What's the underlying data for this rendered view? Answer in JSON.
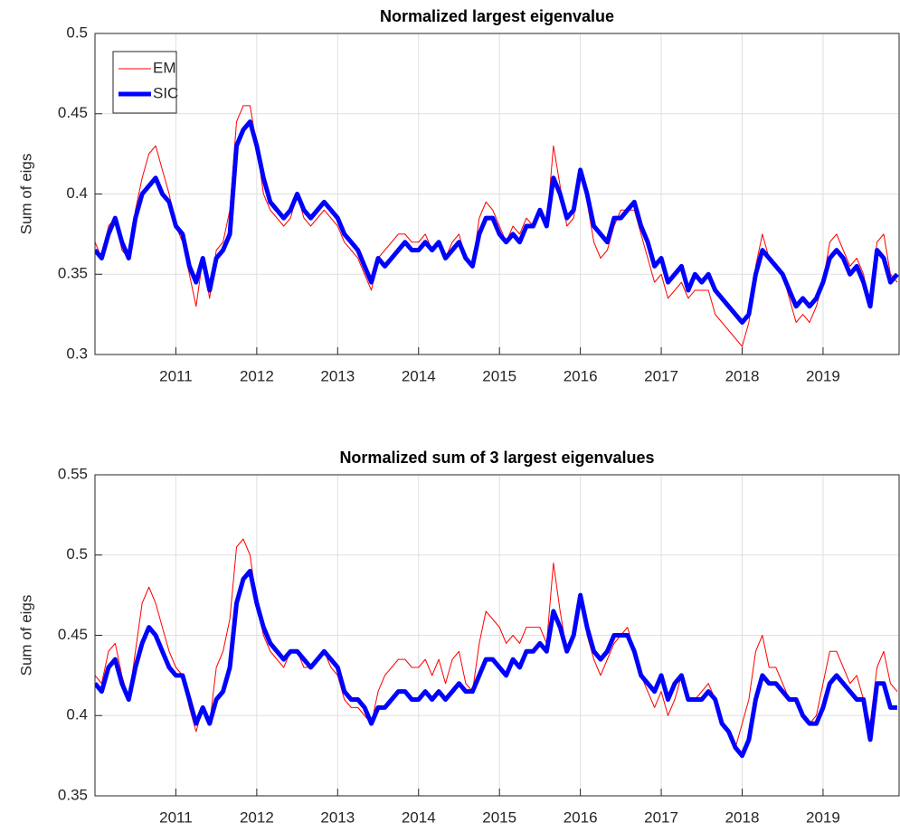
{
  "chart_data": [
    {
      "type": "line",
      "title": "Normalized largest eigenvalue",
      "y_label": "Sum of eigs",
      "x": [
        2010,
        2010.083,
        2010.167,
        2010.25,
        2010.333,
        2010.417,
        2010.5,
        2010.583,
        2010.667,
        2010.75,
        2010.833,
        2010.917,
        2011,
        2011.083,
        2011.167,
        2011.25,
        2011.333,
        2011.417,
        2011.5,
        2011.583,
        2011.667,
        2011.75,
        2011.833,
        2011.917,
        2012,
        2012.083,
        2012.167,
        2012.25,
        2012.333,
        2012.417,
        2012.5,
        2012.583,
        2012.667,
        2012.75,
        2012.833,
        2012.917,
        2013,
        2013.083,
        2013.167,
        2013.25,
        2013.333,
        2013.417,
        2013.5,
        2013.583,
        2013.667,
        2013.75,
        2013.833,
        2013.917,
        2014,
        2014.083,
        2014.167,
        2014.25,
        2014.333,
        2014.417,
        2014.5,
        2014.583,
        2014.667,
        2014.75,
        2014.833,
        2014.917,
        2015,
        2015.083,
        2015.167,
        2015.25,
        2015.333,
        2015.417,
        2015.5,
        2015.583,
        2015.667,
        2015.75,
        2015.833,
        2015.917,
        2016,
        2016.083,
        2016.167,
        2016.25,
        2016.333,
        2016.417,
        2016.5,
        2016.583,
        2016.667,
        2016.75,
        2016.833,
        2016.917,
        2017,
        2017.083,
        2017.167,
        2017.25,
        2017.333,
        2017.417,
        2017.5,
        2017.583,
        2017.667,
        2017.75,
        2017.833,
        2017.917,
        2018,
        2018.083,
        2018.167,
        2018.25,
        2018.333,
        2018.417,
        2018.5,
        2018.583,
        2018.667,
        2018.75,
        2018.833,
        2018.917,
        2019,
        2019.083,
        2019.167,
        2019.25,
        2019.333,
        2019.417,
        2019.5,
        2019.583,
        2019.667,
        2019.75,
        2019.833,
        2019.917
      ],
      "series": [
        {
          "name": "EM",
          "color": "#ff0000",
          "width": 1,
          "values": [
            0.37,
            0.36,
            0.38,
            0.385,
            0.365,
            0.36,
            0.39,
            0.41,
            0.425,
            0.43,
            0.415,
            0.4,
            0.38,
            0.37,
            0.35,
            0.33,
            0.36,
            0.335,
            0.365,
            0.37,
            0.39,
            0.445,
            0.455,
            0.455,
            0.43,
            0.4,
            0.39,
            0.385,
            0.38,
            0.385,
            0.4,
            0.385,
            0.38,
            0.385,
            0.39,
            0.385,
            0.38,
            0.37,
            0.365,
            0.36,
            0.35,
            0.34,
            0.36,
            0.365,
            0.37,
            0.375,
            0.375,
            0.37,
            0.37,
            0.375,
            0.365,
            0.37,
            0.36,
            0.37,
            0.375,
            0.36,
            0.355,
            0.385,
            0.395,
            0.39,
            0.38,
            0.37,
            0.38,
            0.375,
            0.385,
            0.38,
            0.39,
            0.38,
            0.43,
            0.405,
            0.38,
            0.385,
            0.415,
            0.395,
            0.37,
            0.36,
            0.365,
            0.38,
            0.39,
            0.39,
            0.39,
            0.375,
            0.36,
            0.345,
            0.35,
            0.335,
            0.34,
            0.345,
            0.335,
            0.34,
            0.34,
            0.34,
            0.325,
            0.32,
            0.315,
            0.31,
            0.305,
            0.32,
            0.355,
            0.375,
            0.36,
            0.355,
            0.35,
            0.335,
            0.32,
            0.325,
            0.32,
            0.33,
            0.345,
            0.37,
            0.375,
            0.365,
            0.355,
            0.36,
            0.35,
            0.33,
            0.37,
            0.375,
            0.35,
            0.345
          ]
        },
        {
          "name": "SIC",
          "color": "#0000ff",
          "width": 5,
          "values": [
            0.365,
            0.36,
            0.375,
            0.385,
            0.37,
            0.36,
            0.385,
            0.4,
            0.405,
            0.41,
            0.4,
            0.395,
            0.38,
            0.375,
            0.355,
            0.345,
            0.36,
            0.34,
            0.36,
            0.365,
            0.375,
            0.43,
            0.44,
            0.445,
            0.43,
            0.41,
            0.395,
            0.39,
            0.385,
            0.39,
            0.4,
            0.39,
            0.385,
            0.39,
            0.395,
            0.39,
            0.385,
            0.375,
            0.37,
            0.365,
            0.355,
            0.345,
            0.36,
            0.355,
            0.36,
            0.365,
            0.37,
            0.365,
            0.365,
            0.37,
            0.365,
            0.37,
            0.36,
            0.365,
            0.37,
            0.36,
            0.355,
            0.375,
            0.385,
            0.385,
            0.375,
            0.37,
            0.375,
            0.37,
            0.38,
            0.38,
            0.39,
            0.38,
            0.41,
            0.4,
            0.385,
            0.39,
            0.415,
            0.4,
            0.38,
            0.375,
            0.37,
            0.385,
            0.385,
            0.39,
            0.395,
            0.38,
            0.37,
            0.355,
            0.36,
            0.345,
            0.35,
            0.355,
            0.34,
            0.35,
            0.345,
            0.35,
            0.34,
            0.335,
            0.33,
            0.325,
            0.32,
            0.325,
            0.35,
            0.365,
            0.36,
            0.355,
            0.35,
            0.34,
            0.33,
            0.335,
            0.33,
            0.335,
            0.345,
            0.36,
            0.365,
            0.36,
            0.35,
            0.355,
            0.345,
            0.33,
            0.365,
            0.36,
            0.345,
            0.35
          ]
        }
      ],
      "xlim": [
        2010,
        2019.94
      ],
      "xticks": [
        2011,
        2012,
        2013,
        2014,
        2015,
        2016,
        2017,
        2018,
        2019
      ],
      "ylim": [
        0.3,
        0.5
      ],
      "yticks": [
        0.3,
        0.35,
        0.4,
        0.45,
        0.5
      ],
      "grid": true,
      "legend": "upper left"
    },
    {
      "type": "line",
      "title": "Normalized sum of 3 largest eigenvalues",
      "y_label": "Sum of eigs",
      "x": [
        2010,
        2010.083,
        2010.167,
        2010.25,
        2010.333,
        2010.417,
        2010.5,
        2010.583,
        2010.667,
        2010.75,
        2010.833,
        2010.917,
        2011,
        2011.083,
        2011.167,
        2011.25,
        2011.333,
        2011.417,
        2011.5,
        2011.583,
        2011.667,
        2011.75,
        2011.833,
        2011.917,
        2012,
        2012.083,
        2012.167,
        2012.25,
        2012.333,
        2012.417,
        2012.5,
        2012.583,
        2012.667,
        2012.75,
        2012.833,
        2012.917,
        2013,
        2013.083,
        2013.167,
        2013.25,
        2013.333,
        2013.417,
        2013.5,
        2013.583,
        2013.667,
        2013.75,
        2013.833,
        2013.917,
        2014,
        2014.083,
        2014.167,
        2014.25,
        2014.333,
        2014.417,
        2014.5,
        2014.583,
        2014.667,
        2014.75,
        2014.833,
        2014.917,
        2015,
        2015.083,
        2015.167,
        2015.25,
        2015.333,
        2015.417,
        2015.5,
        2015.583,
        2015.667,
        2015.75,
        2015.833,
        2015.917,
        2016,
        2016.083,
        2016.167,
        2016.25,
        2016.333,
        2016.417,
        2016.5,
        2016.583,
        2016.667,
        2016.75,
        2016.833,
        2016.917,
        2017,
        2017.083,
        2017.167,
        2017.25,
        2017.333,
        2017.417,
        2017.5,
        2017.583,
        2017.667,
        2017.75,
        2017.833,
        2017.917,
        2018,
        2018.083,
        2018.167,
        2018.25,
        2018.333,
        2018.417,
        2018.5,
        2018.583,
        2018.667,
        2018.75,
        2018.833,
        2018.917,
        2019,
        2019.083,
        2019.167,
        2019.25,
        2019.333,
        2019.417,
        2019.5,
        2019.583,
        2019.667,
        2019.75,
        2019.833,
        2019.917
      ],
      "series": [
        {
          "name": "EM",
          "color": "#ff0000",
          "width": 1,
          "values": [
            0.425,
            0.42,
            0.44,
            0.445,
            0.425,
            0.41,
            0.44,
            0.47,
            0.48,
            0.47,
            0.455,
            0.44,
            0.43,
            0.425,
            0.405,
            0.39,
            0.405,
            0.395,
            0.43,
            0.44,
            0.46,
            0.505,
            0.51,
            0.5,
            0.47,
            0.45,
            0.44,
            0.435,
            0.43,
            0.44,
            0.44,
            0.43,
            0.43,
            0.435,
            0.44,
            0.43,
            0.425,
            0.41,
            0.405,
            0.405,
            0.4,
            0.395,
            0.415,
            0.425,
            0.43,
            0.435,
            0.435,
            0.43,
            0.43,
            0.435,
            0.425,
            0.435,
            0.42,
            0.435,
            0.44,
            0.42,
            0.415,
            0.445,
            0.465,
            0.46,
            0.455,
            0.445,
            0.45,
            0.445,
            0.455,
            0.455,
            0.455,
            0.445,
            0.495,
            0.465,
            0.44,
            0.45,
            0.475,
            0.45,
            0.435,
            0.425,
            0.435,
            0.445,
            0.45,
            0.455,
            0.44,
            0.425,
            0.415,
            0.405,
            0.415,
            0.4,
            0.41,
            0.425,
            0.41,
            0.41,
            0.415,
            0.42,
            0.41,
            0.395,
            0.39,
            0.38,
            0.395,
            0.41,
            0.44,
            0.45,
            0.43,
            0.43,
            0.42,
            0.41,
            0.41,
            0.4,
            0.395,
            0.4,
            0.42,
            0.44,
            0.44,
            0.43,
            0.42,
            0.425,
            0.41,
            0.395,
            0.43,
            0.44,
            0.42,
            0.415
          ]
        },
        {
          "name": "SIC",
          "color": "#0000ff",
          "width": 5,
          "values": [
            0.42,
            0.415,
            0.43,
            0.435,
            0.42,
            0.41,
            0.43,
            0.445,
            0.455,
            0.45,
            0.44,
            0.43,
            0.425,
            0.425,
            0.41,
            0.395,
            0.405,
            0.395,
            0.41,
            0.415,
            0.43,
            0.47,
            0.485,
            0.49,
            0.47,
            0.455,
            0.445,
            0.44,
            0.435,
            0.44,
            0.44,
            0.435,
            0.43,
            0.435,
            0.44,
            0.435,
            0.43,
            0.415,
            0.41,
            0.41,
            0.405,
            0.395,
            0.405,
            0.405,
            0.41,
            0.415,
            0.415,
            0.41,
            0.41,
            0.415,
            0.41,
            0.415,
            0.41,
            0.415,
            0.42,
            0.415,
            0.415,
            0.425,
            0.435,
            0.435,
            0.43,
            0.425,
            0.435,
            0.43,
            0.44,
            0.44,
            0.445,
            0.44,
            0.465,
            0.455,
            0.44,
            0.45,
            0.475,
            0.455,
            0.44,
            0.435,
            0.44,
            0.45,
            0.45,
            0.45,
            0.44,
            0.425,
            0.42,
            0.415,
            0.425,
            0.41,
            0.42,
            0.425,
            0.41,
            0.41,
            0.41,
            0.415,
            0.41,
            0.395,
            0.39,
            0.38,
            0.375,
            0.385,
            0.41,
            0.425,
            0.42,
            0.42,
            0.415,
            0.41,
            0.41,
            0.4,
            0.395,
            0.395,
            0.405,
            0.42,
            0.425,
            0.42,
            0.415,
            0.41,
            0.41,
            0.385,
            0.42,
            0.42,
            0.405,
            0.405
          ]
        }
      ],
      "xlim": [
        2010,
        2019.94
      ],
      "xticks": [
        2011,
        2012,
        2013,
        2014,
        2015,
        2016,
        2017,
        2018,
        2019
      ],
      "ylim": [
        0.35,
        0.55
      ],
      "yticks": [
        0.35,
        0.4,
        0.45,
        0.5,
        0.55
      ],
      "grid": true
    }
  ]
}
